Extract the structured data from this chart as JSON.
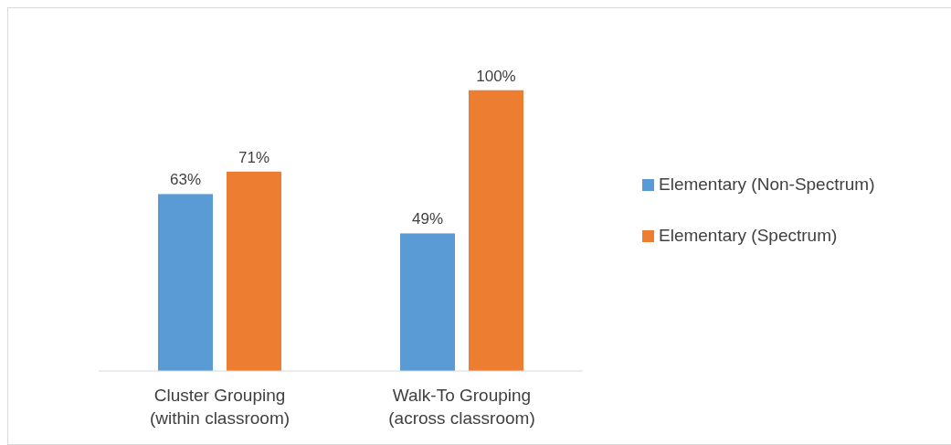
{
  "chart_data": {
    "type": "bar",
    "categories": [
      "Cluster Grouping\n(within classroom)",
      "Walk-To Grouping\n(across classroom)"
    ],
    "series": [
      {
        "name": "Elementary (Non-Spectrum)",
        "color": "#5b9bd5",
        "values": [
          63,
          49
        ],
        "value_labels": [
          "63%",
          "49%"
        ]
      },
      {
        "name": "Elementary (Spectrum)",
        "color": "#ed7d31",
        "values": [
          71,
          100
        ],
        "value_labels": [
          "71%",
          "100%"
        ]
      }
    ],
    "legend": "right"
  }
}
